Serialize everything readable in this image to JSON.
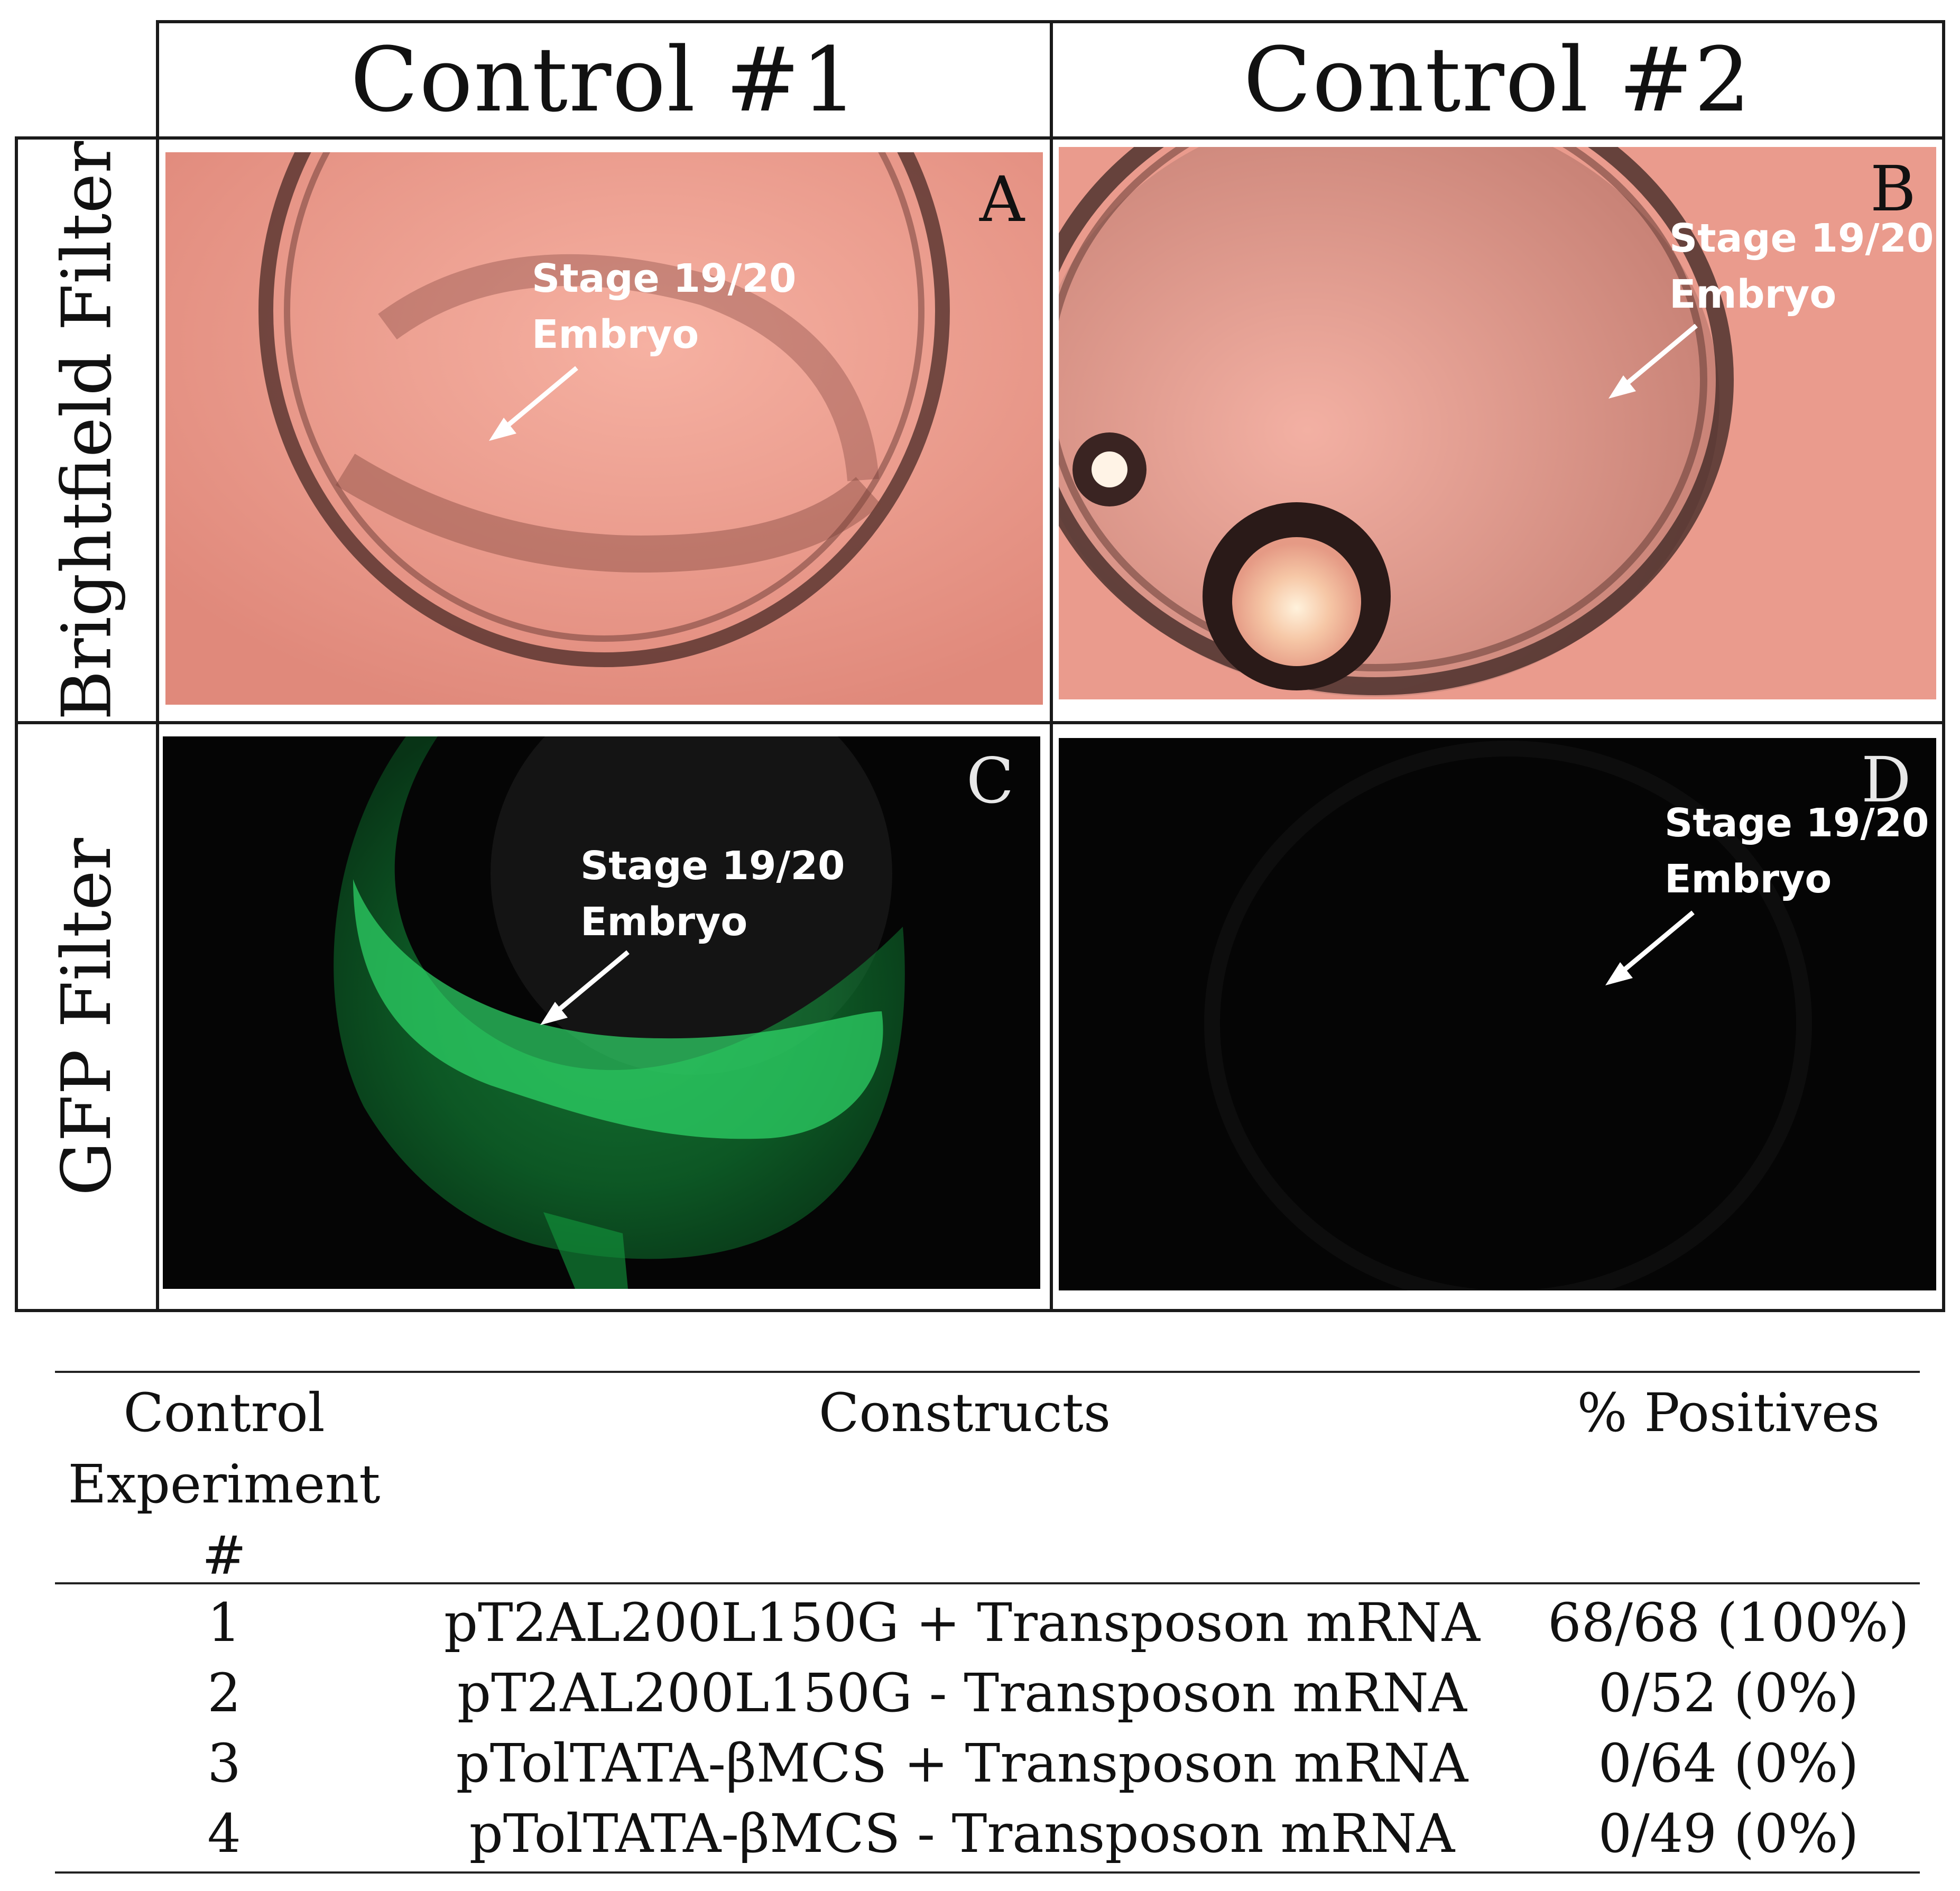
{
  "figure": {
    "columns": [
      "Control #1",
      "Control #2"
    ],
    "rows": [
      "Brightfield Filter",
      "GFP Filter"
    ],
    "panels": [
      {
        "letter": "A",
        "label_line1": "Stage 19/20",
        "label_line2": "Embryo",
        "filter": "brightfield"
      },
      {
        "letter": "B",
        "label_line1": "Stage 19/20",
        "label_line2": "Embryo",
        "filter": "brightfield"
      },
      {
        "letter": "C",
        "label_line1": "Stage 19/20",
        "label_line2": "Embryo",
        "filter": "gfp"
      },
      {
        "letter": "D",
        "label_line1": "Stage 19/20",
        "label_line2": "Embryo",
        "filter": "gfp"
      }
    ],
    "colors": {
      "brightfield_bg": "#e9978a",
      "gfp_bg": "#050505",
      "gfp_signal": "#19b24a"
    }
  },
  "table": {
    "headers": {
      "experiment_line1": "Control",
      "experiment_line2": "Experiment",
      "experiment_line3": "#",
      "constructs": "Constructs",
      "positives": "% Positives"
    },
    "rows": [
      {
        "num": "1",
        "construct": "pT2AL200L150G + Transposon mRNA",
        "positives": "68/68 (100%)"
      },
      {
        "num": "2",
        "construct": "pT2AL200L150G - Transposon mRNA",
        "positives": "0/52 (0%)"
      },
      {
        "num": "3",
        "construct": "pTolTATA-βMCS + Transposon mRNA",
        "positives": "0/64 (0%)"
      },
      {
        "num": "4",
        "construct": "pTolTATA-βMCS - Transposon mRNA",
        "positives": "0/49 (0%)"
      }
    ]
  }
}
